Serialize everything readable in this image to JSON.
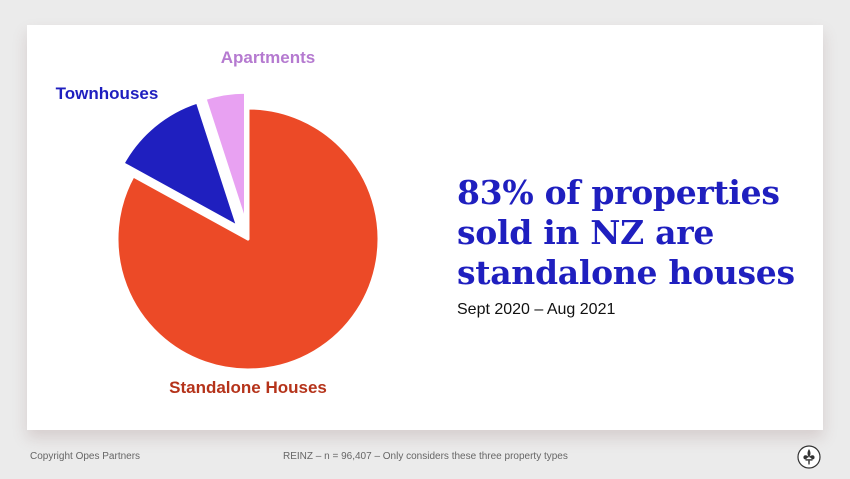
{
  "chart_data": {
    "type": "pie",
    "slices": [
      {
        "label": "Standalone Houses",
        "value": 83,
        "color": "#ec4a27",
        "label_color": "#b5331a",
        "exploded": false
      },
      {
        "label": "Townhouses",
        "value": 12,
        "color": "#1f1fbf",
        "label_color": "#1f1fbf",
        "exploded": true
      },
      {
        "label": "Apartments",
        "value": 5,
        "color": "#e8a1f2",
        "label_color": "#b57ad0",
        "exploded": true
      }
    ]
  },
  "headline": {
    "lines": [
      "83% of properties",
      "sold in NZ are",
      "standalone houses"
    ]
  },
  "subtitle": "Sept 2020 – Aug 2021",
  "footer": {
    "copyright": "Copyright Opes Partners",
    "source": "REINZ – n = 96,407 – Only considers these three property types",
    "logo_icon": "fleur-de-lis-icon"
  }
}
